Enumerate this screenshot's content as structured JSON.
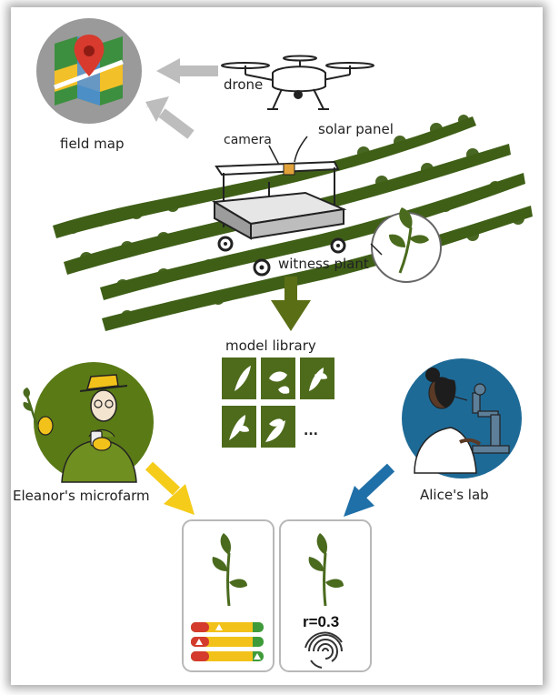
{
  "labels": {
    "drone": "drone",
    "field_map": "field map",
    "camera": "camera",
    "solar_panel": "solar panel",
    "witness_plant": "witness plant",
    "model_library": "model library",
    "library_more": "...",
    "eleanor": "Eleanor's microfarm",
    "alice": "Alice's lab",
    "correlation": "r=0.3"
  },
  "colors": {
    "leaf_green": "#4a6a1e",
    "field_green": "#3f5f17",
    "arrow_gray": "#bdbdbd",
    "arrow_olive": "#5a6e16",
    "arrow_yellow": "#f5cc1a",
    "arrow_blue": "#1f6fa8",
    "alice_bg": "#1e6a96",
    "eleanor_bg": "#5a7a16"
  },
  "icons": {
    "map": "map-pin-icon",
    "fingerprint": "fingerprint-icon"
  }
}
